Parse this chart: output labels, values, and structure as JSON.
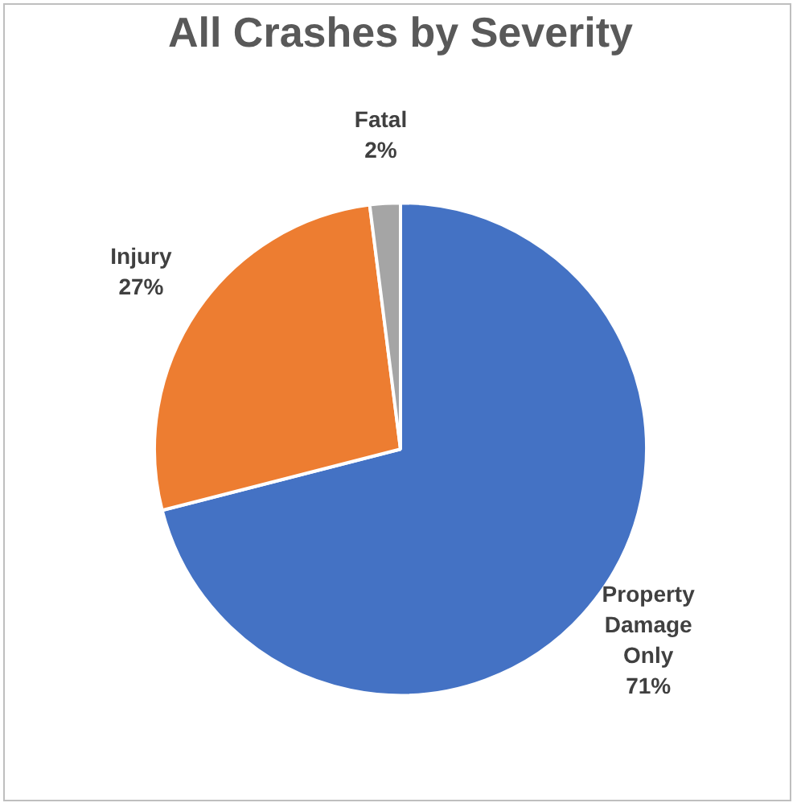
{
  "chart_data": {
    "type": "pie",
    "title": "All Crashes by Severity",
    "categories": [
      "Property Damage Only",
      "Injury",
      "Fatal"
    ],
    "values": [
      71,
      27,
      2
    ],
    "colors": [
      "#4472c4",
      "#ed7d31",
      "#a5a5a5"
    ],
    "value_labels": [
      "71%",
      "27%",
      "2%"
    ],
    "legend": false
  }
}
